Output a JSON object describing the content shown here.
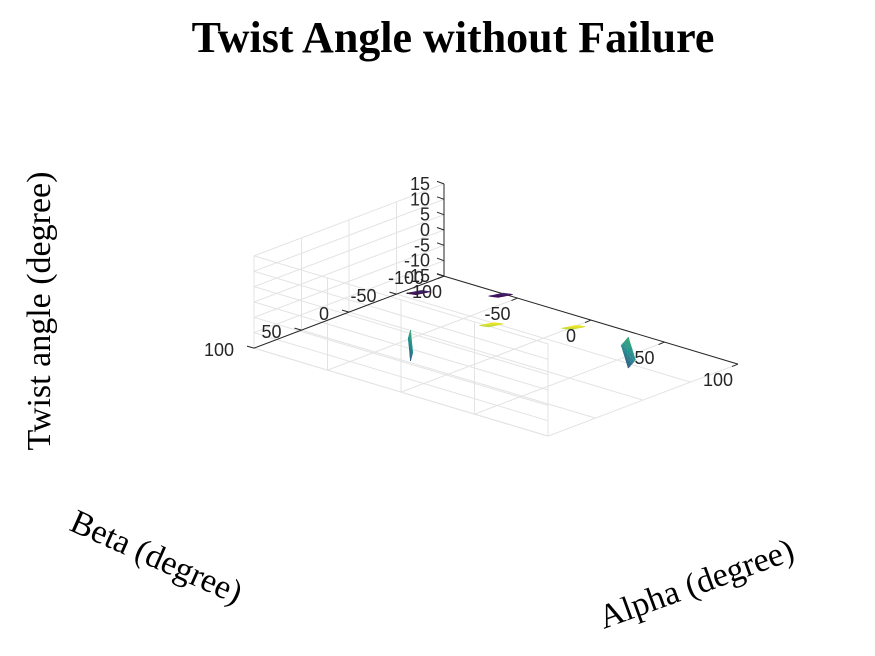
{
  "chart_data": {
    "type": "surface",
    "title": "Twist Angle without Failure",
    "xlabel": "Alpha (degree)",
    "ylabel": "Beta (degree)",
    "zlabel": "Twist angle (degree)",
    "xlim": [
      -100,
      100
    ],
    "ylim": [
      -100,
      100
    ],
    "zlim": [
      -15,
      15
    ],
    "x_ticks": [
      "-100",
      "-50",
      "0",
      "50",
      "100"
    ],
    "y_ticks": [
      "-100",
      "-50",
      "0",
      "50",
      "100"
    ],
    "z_ticks": [
      "-15",
      "-10",
      "-5",
      "0",
      "5",
      "10",
      "15"
    ],
    "grid": true,
    "colormap": [
      "#440154",
      "#3b528b",
      "#21918c",
      "#5ec962",
      "#fde725"
    ],
    "series": [
      {
        "region": "front",
        "x": [
          -58,
          -48
        ],
        "y": [
          -92,
          -82
        ],
        "z": [
          -15,
          -11
        ]
      },
      {
        "region": "left",
        "x": [
          -92,
          -82
        ],
        "y": [
          -58,
          -48
        ],
        "z": [
          -15,
          -11
        ]
      },
      {
        "region": "right",
        "x": [
          80,
          100
        ],
        "y": [
          -8,
          8
        ],
        "z": [
          -6,
          4
        ]
      },
      {
        "region": "back-left",
        "x": [
          -8,
          8
        ],
        "y": [
          80,
          100
        ],
        "z": [
          -6,
          4
        ]
      },
      {
        "region": "back",
        "x": [
          48,
          58
        ],
        "y": [
          82,
          92
        ],
        "z": [
          11,
          15
        ]
      },
      {
        "region": "top-right",
        "x": [
          82,
          92
        ],
        "y": [
          48,
          58
        ],
        "z": [
          11,
          15
        ]
      }
    ]
  }
}
